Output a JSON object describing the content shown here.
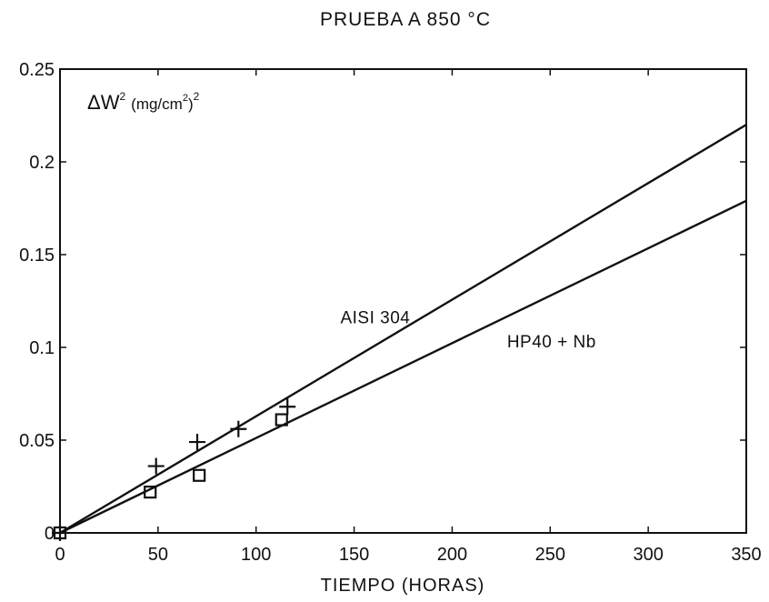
{
  "chart_data": {
    "type": "scatter",
    "title": "PRUEBA A 850 °C",
    "xlabel": "TIEMPO (HORAS)",
    "ylabel": {
      "delta": "Δ",
      "w": "W",
      "w_sup": "2",
      "units_open": "(mg/cm",
      "units_sup": "2",
      "units_close": ")",
      "outer_sup": "2"
    },
    "xlim": [
      0,
      350
    ],
    "ylim": [
      0,
      0.25
    ],
    "xticks": [
      0,
      50,
      100,
      150,
      200,
      250,
      300,
      350
    ],
    "yticks": [
      0,
      0.05,
      0.1,
      0.15,
      0.2,
      0.25
    ],
    "xtick_labels": [
      "0",
      "50",
      "100",
      "150",
      "200",
      "250",
      "300",
      "350"
    ],
    "ytick_labels": [
      "0",
      "0.05",
      "0.1",
      "0.15",
      "0.2",
      "0.25"
    ],
    "series": [
      {
        "name": "AISI 304",
        "marker": "plus",
        "points": [
          [
            0,
            0
          ],
          [
            49,
            0.036
          ],
          [
            70,
            0.049
          ],
          [
            91,
            0.056
          ],
          [
            116,
            0.068
          ]
        ],
        "fit": [
          [
            0,
            0
          ],
          [
            350,
            0.22
          ]
        ]
      },
      {
        "name": "HP40 + Nb",
        "marker": "square",
        "points": [
          [
            0,
            0
          ],
          [
            46,
            0.022
          ],
          [
            71,
            0.031
          ],
          [
            113,
            0.061
          ]
        ],
        "fit": [
          [
            0,
            0
          ],
          [
            350,
            0.179
          ]
        ]
      }
    ],
    "annotations": [
      {
        "text": "AISI 304",
        "series": 0,
        "x": 143,
        "y": 0.113
      },
      {
        "text": "HP40 + Nb",
        "series": 1,
        "x": 228,
        "y": 0.1
      }
    ],
    "grid": false,
    "legend": "none"
  }
}
